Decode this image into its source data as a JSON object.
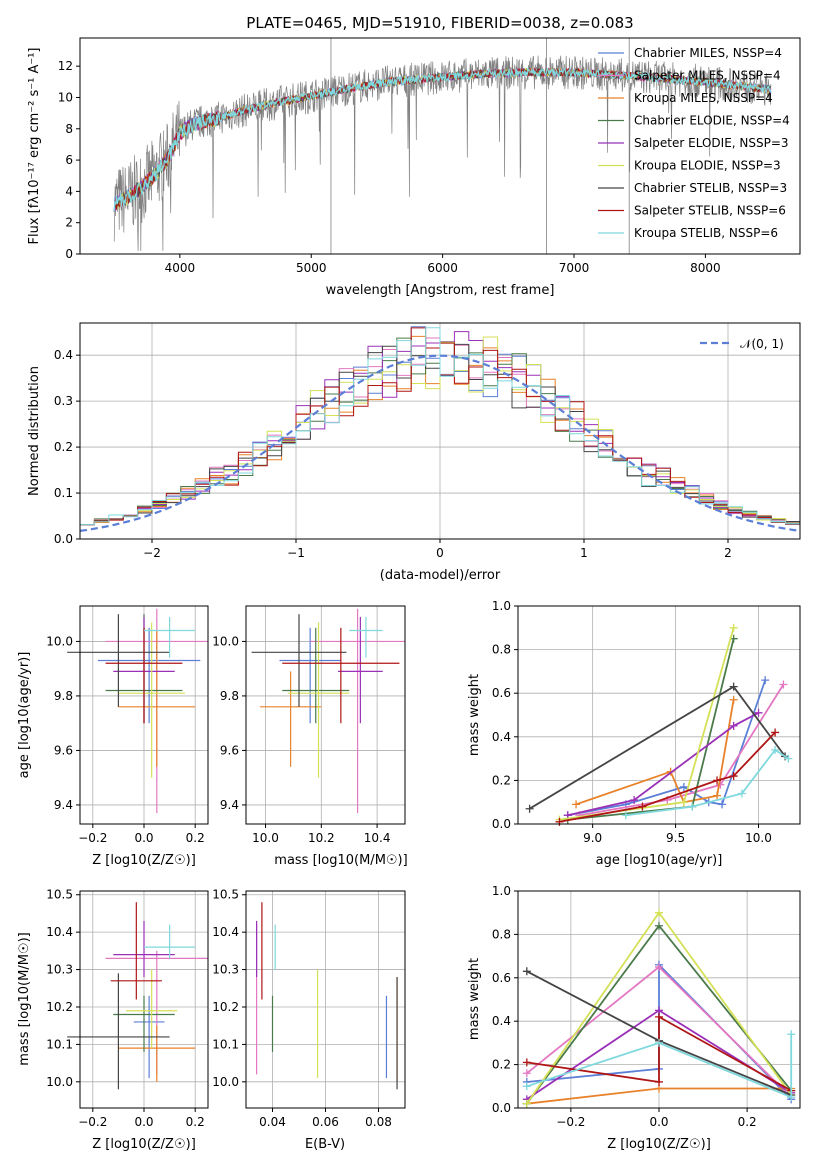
{
  "chart_data": [
    {
      "type": "line",
      "title": "PLATE=0465, MJD=51910, FIBERID=0038, z=0.083",
      "xlabel": "wavelength [Angstrom, rest frame]",
      "ylabel": "Flux [fλ10⁻¹⁷ erg cm⁻² s⁻¹ A⁻¹]",
      "xlim": [
        3240,
        8720
      ],
      "ylim": [
        0,
        13.8
      ],
      "xticks": [
        4000,
        5000,
        6000,
        7000,
        8000
      ],
      "yticks": [
        0,
        2,
        4,
        6,
        8,
        10,
        12
      ],
      "data_label": "",
      "continuum": {
        "wavelength": [
          3500,
          3600,
          3700,
          3800,
          3900,
          4000,
          4100,
          4300,
          4500,
          4700,
          5000,
          5300,
          5600,
          6000,
          6300,
          6600,
          7000,
          7400,
          7700,
          8000,
          8300,
          8500
        ],
        "flux": [
          3.2,
          3.6,
          4.2,
          5.0,
          6.0,
          7.7,
          8.3,
          8.7,
          9.2,
          9.6,
          10.1,
          10.6,
          11.0,
          11.3,
          11.5,
          11.6,
          11.6,
          11.4,
          11.2,
          11.0,
          10.7,
          10.5
        ]
      },
      "series": [
        {
          "name": "Chabrier MILES, NSSP=4",
          "color": "#5b7fd6"
        },
        {
          "name": "Salpeter MILES, NSSP=4",
          "color": "#e377c2"
        },
        {
          "name": "Kroupa MILES, NSSP=4",
          "color": "#e8822a"
        },
        {
          "name": "Chabrier ELODIE, NSSP=4",
          "color": "#4a7a4a"
        },
        {
          "name": "Salpeter ELODIE, NSSP=3",
          "color": "#9b30b8"
        },
        {
          "name": "Kroupa ELODIE, NSSP=3",
          "color": "#d4e157"
        },
        {
          "name": "Chabrier STELIB, NSSP=3",
          "color": "#444444"
        },
        {
          "name": "Salpeter STELIB, NSSP=6",
          "color": "#b01515"
        },
        {
          "name": "Kroupa STELIB, NSSP=6",
          "color": "#7fd8dd"
        }
      ],
      "legend": "top-right"
    },
    {
      "type": "histogram",
      "xlabel": "(data-model)/error",
      "ylabel": "Normed distribution",
      "xlim": [
        -2.5,
        2.5
      ],
      "ylim": [
        0,
        0.47
      ],
      "xticks": [
        -2,
        -1,
        0,
        1,
        2
      ],
      "yticks": [
        0.0,
        0.1,
        0.2,
        0.3,
        0.4
      ],
      "bins": 50,
      "reference_curve": {
        "name": "𝒩(0, 1)",
        "mean": 0,
        "sigma": 1,
        "color": "#5b7fd6"
      },
      "legend": "top-right"
    },
    {
      "type": "scatter",
      "xlabel": "Z [log10(Z/Z☉)]",
      "ylabel": "age [log10(age/yr)]",
      "xlim": [
        -0.25,
        0.25
      ],
      "ylim": [
        9.33,
        10.13
      ],
      "xticks": [
        -0.2,
        0.0,
        0.2
      ],
      "yticks": [
        9.4,
        9.6,
        9.8,
        10.0
      ],
      "points": [
        {
          "x": 0.02,
          "y": 9.93,
          "xerr": 0.2,
          "yerr_lo": 0.23,
          "yerr_hi": 0.12
        },
        {
          "x": 0.05,
          "y": 10.0,
          "xerr": 0.2,
          "yerr_lo": 0.63,
          "yerr_hi": 0.12
        },
        {
          "x": 0.05,
          "y": 9.76,
          "xerr": 0.15,
          "yerr_lo": 0.22,
          "yerr_hi": 0.28
        },
        {
          "x": 0.0,
          "y": 9.82,
          "xerr": 0.15,
          "yerr_lo": 0.12,
          "yerr_hi": 0.28
        },
        {
          "x": 0.0,
          "y": 9.89,
          "xerr": 0.12,
          "yerr_lo": 0.19,
          "yerr_hi": 0.2
        },
        {
          "x": 0.03,
          "y": 9.81,
          "xerr": 0.13,
          "yerr_lo": 0.31,
          "yerr_hi": 0.26
        },
        {
          "x": -0.1,
          "y": 9.96,
          "xerr": 0.2,
          "yerr_lo": 0.2,
          "yerr_hi": 0.14
        },
        {
          "x": 0.0,
          "y": 9.92,
          "xerr": 0.15,
          "yerr_lo": 0.22,
          "yerr_hi": 0.13
        },
        {
          "x": 0.1,
          "y": 10.04,
          "xerr": 0.1,
          "yerr_lo": 0.1,
          "yerr_hi": 0.05
        }
      ]
    },
    {
      "type": "scatter",
      "xlabel": "mass [log10(M/M☉)]",
      "ylabel": "",
      "xlim": [
        9.93,
        10.5
      ],
      "ylim": [
        9.33,
        10.13
      ],
      "xticks": [
        10.0,
        10.2,
        10.4
      ],
      "yticks": [
        9.4,
        9.6,
        9.8,
        10.0
      ],
      "points": [
        {
          "x": 10.16,
          "y": 9.93,
          "xerr": 0.11,
          "yerr_lo": 0.23,
          "yerr_hi": 0.12
        },
        {
          "x": 10.33,
          "y": 10.0,
          "xerr": 0.17,
          "yerr_lo": 0.63,
          "yerr_hi": 0.12
        },
        {
          "x": 10.09,
          "y": 9.76,
          "xerr": 0.11,
          "yerr_lo": 0.22,
          "yerr_hi": 0.13
        },
        {
          "x": 10.18,
          "y": 9.82,
          "xerr": 0.12,
          "yerr_lo": 0.12,
          "yerr_hi": 0.23
        },
        {
          "x": 10.34,
          "y": 9.89,
          "xerr": 0.08,
          "yerr_lo": 0.19,
          "yerr_hi": 0.2
        },
        {
          "x": 10.19,
          "y": 9.81,
          "xerr": 0.11,
          "yerr_lo": 0.31,
          "yerr_hi": 0.26
        },
        {
          "x": 10.12,
          "y": 9.96,
          "xerr": 0.17,
          "yerr_lo": 0.2,
          "yerr_hi": 0.14
        },
        {
          "x": 10.27,
          "y": 9.92,
          "xerr": 0.21,
          "yerr_lo": 0.22,
          "yerr_hi": 0.13
        },
        {
          "x": 10.36,
          "y": 10.04,
          "xerr": 0.06,
          "yerr_lo": 0.1,
          "yerr_hi": 0.05
        }
      ]
    },
    {
      "type": "line",
      "xlabel": "age [log10(age/yr)]",
      "ylabel": "mass weight",
      "xlim": [
        8.55,
        10.25
      ],
      "ylim": [
        0,
        1.0
      ],
      "xticks": [
        9.0,
        9.5,
        10.0
      ],
      "yticks": [
        0.0,
        0.2,
        0.4,
        0.6,
        0.8,
        1.0
      ],
      "series": [
        {
          "x": [
            8.85,
            9.2,
            9.55,
            9.7,
            9.78,
            10.04
          ],
          "y": [
            0.04,
            0.09,
            0.17,
            0.1,
            0.09,
            0.66
          ]
        },
        {
          "x": [
            8.92,
            9.45,
            9.77,
            10.15
          ],
          "y": [
            0.04,
            0.11,
            0.18,
            0.64
          ]
        },
        {
          "x": [
            8.9,
            9.47,
            9.55,
            9.75,
            9.85
          ],
          "y": [
            0.09,
            0.24,
            0.1,
            0.13,
            0.57
          ]
        },
        {
          "x": [
            8.85,
            9.6,
            9.85
          ],
          "y": [
            0.02,
            0.08,
            0.85
          ]
        },
        {
          "x": [
            8.85,
            9.25,
            9.85,
            10.0
          ],
          "y": [
            0.04,
            0.11,
            0.45,
            0.51
          ]
        },
        {
          "x": [
            8.8,
            9.55,
            9.85
          ],
          "y": [
            0.02,
            0.1,
            0.9
          ]
        },
        {
          "x": [
            8.62,
            9.85,
            10.16
          ],
          "y": [
            0.07,
            0.63,
            0.31
          ]
        },
        {
          "x": [
            8.8,
            9.3,
            9.75,
            9.85,
            10.1
          ],
          "y": [
            0.01,
            0.08,
            0.2,
            0.22,
            0.42
          ]
        },
        {
          "x": [
            9.2,
            9.6,
            9.9,
            10.1,
            10.18
          ],
          "y": [
            0.04,
            0.08,
            0.14,
            0.34,
            0.3
          ]
        }
      ]
    },
    {
      "type": "scatter",
      "xlabel": "Z [log10(Z/Z☉)]",
      "ylabel": "mass [log10(M/M☉)]",
      "xlim": [
        -0.25,
        0.25
      ],
      "ylim": [
        9.93,
        10.51
      ],
      "xticks": [
        -0.2,
        0.0,
        0.2
      ],
      "yticks": [
        10.0,
        10.1,
        10.2,
        10.3,
        10.4,
        10.5
      ],
      "points": [
        {
          "x": 0.02,
          "y": 10.16,
          "xerr": 0.06,
          "yerr_lo": 0.15,
          "yerr_hi": 0.07
        },
        {
          "x": 0.05,
          "y": 10.33,
          "xerr": 0.2,
          "yerr_lo": 0.31,
          "yerr_hi": 0.02
        },
        {
          "x": 0.05,
          "y": 10.09,
          "xerr": 0.15,
          "yerr_lo": 0.09,
          "yerr_hi": 0.06
        },
        {
          "x": 0.0,
          "y": 10.18,
          "xerr": 0.12,
          "yerr_lo": 0.1,
          "yerr_hi": 0.05
        },
        {
          "x": 0.0,
          "y": 10.34,
          "xerr": 0.12,
          "yerr_lo": 0.06,
          "yerr_hi": 0.09
        },
        {
          "x": 0.03,
          "y": 10.19,
          "xerr": 0.1,
          "yerr_lo": 0.1,
          "yerr_hi": 0.11
        },
        {
          "x": -0.1,
          "y": 10.12,
          "xerr": 0.2,
          "yerr_lo": 0.14,
          "yerr_hi": 0.17
        },
        {
          "x": -0.03,
          "y": 10.27,
          "xerr": 0.1,
          "yerr_lo": 0.05,
          "yerr_hi": 0.21
        },
        {
          "x": 0.1,
          "y": 10.36,
          "xerr": 0.1,
          "yerr_lo": 0.03,
          "yerr_hi": 0.06
        }
      ]
    },
    {
      "type": "scatter",
      "xlabel": "E(B-V)",
      "ylabel": "",
      "xlim": [
        0.03,
        0.09
      ],
      "ylim": [
        9.93,
        10.51
      ],
      "xticks": [
        0.04,
        0.06,
        0.08
      ],
      "yticks": [
        10.0,
        10.1,
        10.2,
        10.3,
        10.4,
        10.5
      ],
      "points": [
        {
          "x": 0.083,
          "y": 10.16,
          "yerr_lo": 0.15,
          "yerr_hi": 0.07
        },
        {
          "x": 0.034,
          "y": 10.33,
          "yerr_lo": 0.31,
          "yerr_hi": 0.09
        },
        {
          "x": 0.087,
          "y": 10.09,
          "yerr_lo": 0.09,
          "yerr_hi": 0.19
        },
        {
          "x": 0.04,
          "y": 10.18,
          "yerr_lo": 0.1,
          "yerr_hi": 0.05
        },
        {
          "x": 0.034,
          "y": 10.34,
          "yerr_lo": 0.06,
          "yerr_hi": 0.09
        },
        {
          "x": 0.057,
          "y": 10.19,
          "yerr_lo": 0.18,
          "yerr_hi": 0.11
        },
        {
          "x": 0.087,
          "y": 10.12,
          "yerr_lo": 0.14,
          "yerr_hi": 0.16
        },
        {
          "x": 0.036,
          "y": 10.27,
          "yerr_lo": 0.05,
          "yerr_hi": 0.21
        },
        {
          "x": 0.041,
          "y": 10.36,
          "yerr_lo": 0.06,
          "yerr_hi": 0.06
        }
      ]
    },
    {
      "type": "line",
      "xlabel": "Z [log10(Z/Z☉)]",
      "ylabel": "mass weight",
      "xlim": [
        -0.32,
        0.32
      ],
      "ylim": [
        0,
        1.0
      ],
      "xticks": [
        -0.2,
        0.0,
        0.2
      ],
      "yticks": [
        0.0,
        0.2,
        0.4,
        0.6,
        0.8,
        1.0
      ],
      "series": [
        {
          "x": [
            -0.3,
            0.0,
            0.0,
            0.3
          ],
          "y": [
            0.12,
            0.18,
            0.66,
            0.04
          ]
        },
        {
          "x": [
            -0.3,
            0.0,
            0.3
          ],
          "y": [
            0.16,
            0.65,
            0.05
          ]
        },
        {
          "x": [
            -0.3,
            0.0,
            0.3
          ],
          "y": [
            0.02,
            0.09,
            0.09
          ]
        },
        {
          "x": [
            -0.3,
            0.0,
            0.3
          ],
          "y": [
            0.02,
            0.84,
            0.08
          ]
        },
        {
          "x": [
            -0.3,
            0.0,
            0.3
          ],
          "y": [
            0.04,
            0.45,
            0.07
          ]
        },
        {
          "x": [
            -0.3,
            0.0,
            0.3
          ],
          "y": [
            0.02,
            0.9,
            0.06
          ]
        },
        {
          "x": [
            -0.3,
            0.0,
            0.3
          ],
          "y": [
            0.63,
            0.31,
            0.06
          ]
        },
        {
          "x": [
            -0.3,
            0.0,
            0.0,
            0.3
          ],
          "y": [
            0.21,
            0.12,
            0.42,
            0.08
          ]
        },
        {
          "x": [
            -0.3,
            0.0,
            0.3,
            0.3
          ],
          "y": [
            0.1,
            0.3,
            0.05,
            0.34
          ]
        }
      ]
    }
  ]
}
